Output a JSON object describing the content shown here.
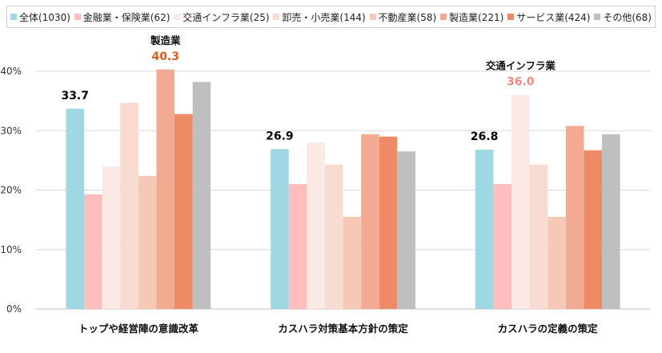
{
  "chart_data": {
    "type": "bar",
    "categories": [
      "トップや経営陣の意識改革",
      "カスハラ対策基本方針の策定",
      "カスハラの定義の策定"
    ],
    "series": [
      {
        "name": "全体(1030)",
        "color": "#9fd8e3",
        "values": [
          33.7,
          26.9,
          26.8
        ]
      },
      {
        "name": "金融業・保険業(62)",
        "color": "#ffbdbd",
        "values": [
          19.3,
          21.0,
          21.0
        ]
      },
      {
        "name": "交通インフラ業(25)",
        "color": "#fbe9e5",
        "values": [
          24.0,
          28.0,
          36.0
        ]
      },
      {
        "name": "卸売・小売業(144)",
        "color": "#f9dcd1",
        "values": [
          34.7,
          24.3,
          24.3
        ]
      },
      {
        "name": "不動産業(58)",
        "color": "#f6c9b7",
        "values": [
          22.4,
          15.5,
          15.5
        ]
      },
      {
        "name": "製造業(221)",
        "color": "#f2ab92",
        "values": [
          40.3,
          29.4,
          30.8
        ]
      },
      {
        "name": "サービス業(424)",
        "color": "#ee8b66",
        "values": [
          32.8,
          29.0,
          26.7
        ]
      },
      {
        "name": "その他(68)",
        "color": "#bfbfbf",
        "values": [
          38.2,
          26.5,
          29.4
        ]
      }
    ],
    "ylim": [
      0,
      40
    ],
    "yticks": [
      "0%",
      "10%",
      "20%",
      "30%",
      "40%"
    ],
    "grid": true,
    "legend_position": "top",
    "annotations": [
      {
        "category_index": 0,
        "series_index": 0,
        "label": "33.7",
        "color": "#000000"
      },
      {
        "category_index": 0,
        "series_index": 5,
        "label": "40.3",
        "color": "#e05a1c",
        "header": "製造業"
      },
      {
        "category_index": 1,
        "series_index": 0,
        "label": "26.9",
        "color": "#000000"
      },
      {
        "category_index": 2,
        "series_index": 0,
        "label": "26.8",
        "color": "#000000"
      },
      {
        "category_index": 2,
        "series_index": 2,
        "label": "36.0",
        "color": "#f08a80",
        "header": "交通インフラ業"
      }
    ]
  }
}
